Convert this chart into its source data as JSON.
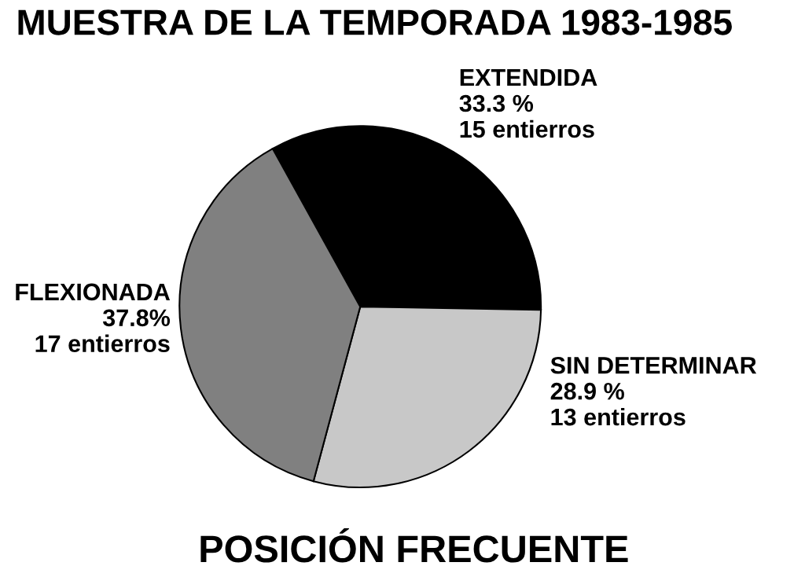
{
  "chart_data": {
    "type": "pie",
    "title": "MUESTRA DE LA TEMPORADA 1983-1985",
    "categories": [
      "EXTENDIDA",
      "SIN DETERMINAR",
      "FLEXIONADA"
    ],
    "values": [
      15,
      13,
      17
    ],
    "value_labels": [
      "33.3 %\n15 entierros",
      "28.9 %\n13 entierros",
      "37.8%\n17 entierros"
    ],
    "colors": [
      "#000000",
      "#c8c8c8",
      "#808080"
    ],
    "annotations": [
      "POSICIÓN FRECUENTE"
    ]
  }
}
